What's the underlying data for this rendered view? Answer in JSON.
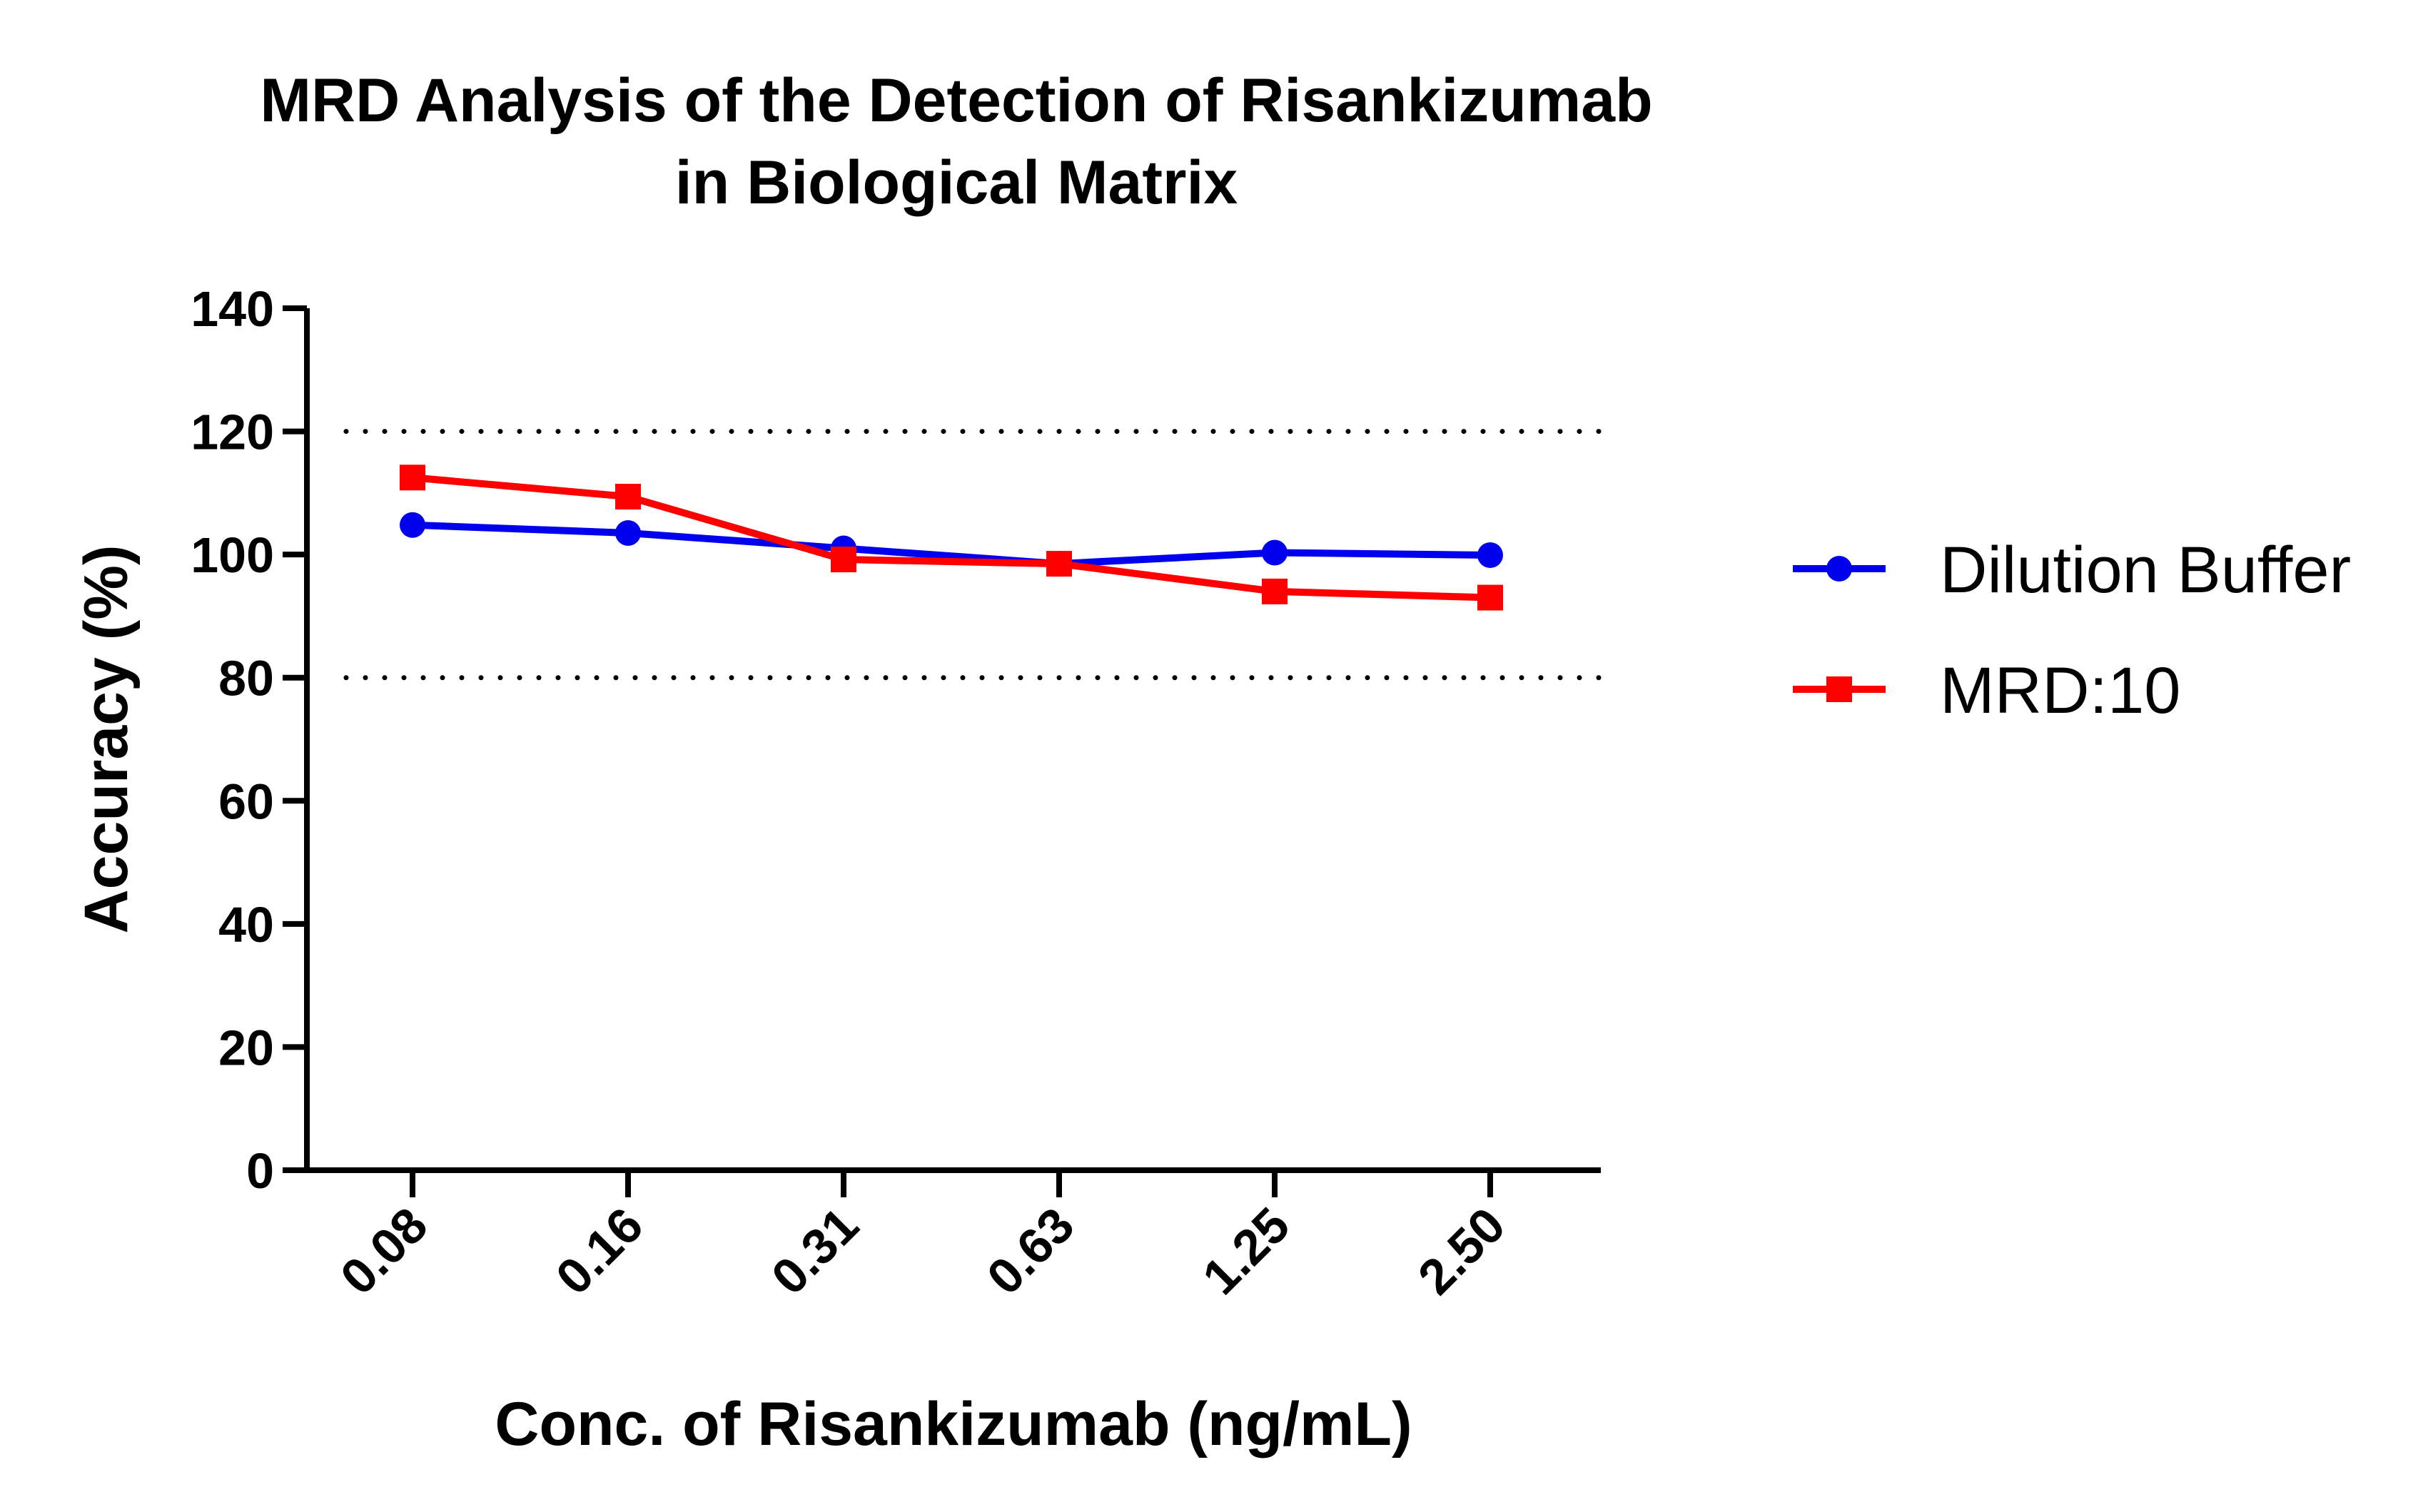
{
  "chart_data": {
    "type": "line",
    "title_lines": [
      "MRD Analysis of the Detection of Risankizumab",
      "in Biological Matrix"
    ],
    "xlabel": "Conc. of Risankizumab (ng/mL)",
    "ylabel": "Accuracy (%)",
    "categories": [
      "0.08",
      "0.16",
      "0.31",
      "0.63",
      "1.25",
      "2.50"
    ],
    "ylim": [
      0,
      140
    ],
    "yticks": [
      "0",
      "20",
      "40",
      "60",
      "80",
      "100",
      "120",
      "140"
    ],
    "reference_lines": [
      80,
      120
    ],
    "grid": false,
    "legend_position": "right",
    "series": [
      {
        "name": "Dilution Buffer",
        "color": "#0000ee",
        "marker": "circle",
        "values": [
          104.8,
          103.5,
          101.0,
          98.5,
          100.3,
          99.9
        ]
      },
      {
        "name": "MRD:10",
        "color": "#ff0000",
        "marker": "square",
        "values": [
          112.5,
          109.4,
          99.2,
          98.5,
          94.0,
          93.0
        ]
      }
    ]
  }
}
